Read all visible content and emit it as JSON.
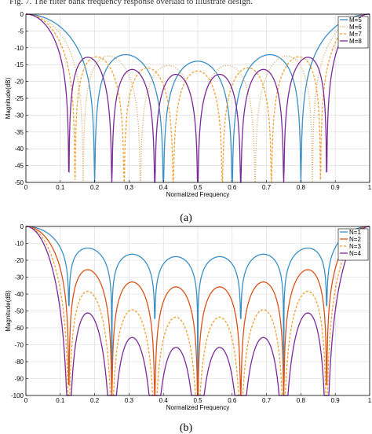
{
  "header_text": "Fig. 7. The filter bank frequency response overlaid to illustrate design.",
  "chart_data": [
    {
      "type": "line",
      "caption": "(a)",
      "xlabel": "Normalized Frequency",
      "ylabel": "Magnitude(dB)",
      "xlim": [
        0,
        1
      ],
      "ylim": [
        -50,
        0
      ],
      "xticks": [
        0,
        0.1,
        0.2,
        0.3,
        0.4,
        0.5,
        0.6,
        0.7,
        0.8,
        0.9,
        1
      ],
      "xtick_labels": [
        "0",
        "0.1",
        "0.2",
        "0.3",
        "0.4",
        "0.5",
        "0.6",
        "0.7",
        "0.8",
        "0.9",
        "1"
      ],
      "yticks": [
        0,
        -5,
        -10,
        -15,
        -20,
        -25,
        -30,
        -35,
        -40,
        -45,
        -50
      ],
      "ytick_labels": [
        "0",
        "-5",
        "-10",
        "-15",
        "-20",
        "-25",
        "-30",
        "-35",
        "-40",
        "-45",
        "-50"
      ],
      "grid": true,
      "legend_position": "top-right",
      "series": [
        {
          "name": "M=5",
          "color": "#3a8fc4",
          "style": "solid",
          "m": 5,
          "n": 1,
          "floor": -50,
          "x": [
            0,
            0.1,
            0.2,
            0.3,
            0.4,
            0.5,
            0.6,
            0.7,
            0.8,
            0.9,
            1.0
          ],
          "values": [
            0,
            -1.4,
            -6.1,
            -16.2,
            -50,
            -13.6,
            -12.0,
            -16.1,
            -50,
            -17.3,
            -11.9
          ]
        },
        {
          "name": "M=6",
          "color": "#d9a35a",
          "style": "dotted",
          "m": 6,
          "n": 1,
          "floor": -50,
          "x": [
            0,
            0.1,
            0.2,
            0.3,
            0.33,
            0.5,
            0.67,
            0.8,
            0.9,
            1.0
          ],
          "values": [
            0,
            -2.0,
            -9.3,
            -32.9,
            -48,
            -13.3,
            -48,
            -14.2,
            -15.0,
            -12.2
          ]
        },
        {
          "name": "M=7",
          "color": "#f0a030",
          "style": "dashed",
          "m": 7,
          "n": 1,
          "floor": -50,
          "x": [
            0,
            0.1,
            0.2,
            0.286,
            0.4,
            0.571,
            0.7,
            0.857,
            1.0
          ],
          "values": [
            0,
            -2.8,
            -14.1,
            -50,
            -12.6,
            -50,
            -12.3,
            -50,
            -12.2
          ]
        },
        {
          "name": "M=8",
          "color": "#7b2a9a",
          "style": "solid",
          "m": 8,
          "n": 1,
          "floor": -50,
          "x": [
            0,
            0.1,
            0.2,
            0.25,
            0.35,
            0.5,
            0.63,
            0.75,
            0.87,
            1.0
          ],
          "values": [
            0,
            -3.7,
            -21.1,
            -41.9,
            -12.4,
            -47.2,
            -12.0,
            -47.2,
            -12.1,
            -12.2
          ]
        }
      ]
    },
    {
      "type": "line",
      "caption": "(b)",
      "xlabel": "Normalized Frequency",
      "ylabel": "Magnitude(dB)",
      "xlim": [
        0,
        1
      ],
      "ylim": [
        -100,
        0
      ],
      "xticks": [
        0,
        0.1,
        0.2,
        0.3,
        0.4,
        0.5,
        0.6,
        0.7,
        0.8,
        0.9,
        1
      ],
      "xtick_labels": [
        "0",
        "0.1",
        "0.2",
        "0.3",
        "0.4",
        "0.5",
        "0.6",
        "0.7",
        "0.8",
        "0.9",
        "1"
      ],
      "yticks": [
        0,
        -10,
        -20,
        -30,
        -40,
        -50,
        -60,
        -70,
        -80,
        -90,
        -100
      ],
      "ytick_labels": [
        "0",
        "-10",
        "-20",
        "-30",
        "-40",
        "-50",
        "-60",
        "-70",
        "-80",
        "-90",
        "-100"
      ],
      "grid": true,
      "legend_position": "top-right",
      "series": [
        {
          "name": "N=1",
          "color": "#3a8fc4",
          "style": "solid",
          "m": 8,
          "n": 1,
          "floor": -100,
          "x": [
            0,
            0.1,
            0.2,
            0.25,
            0.36,
            0.5,
            0.62,
            0.75,
            0.88,
            1.0
          ],
          "values": [
            0,
            -3.7,
            -21.1,
            -60,
            -12.9,
            -60,
            -16.2,
            -60,
            -17.3,
            -16.5
          ]
        },
        {
          "name": "N=2",
          "color": "#d95319",
          "style": "solid",
          "m": 8,
          "n": 2,
          "floor": -100,
          "x": [
            0,
            0.1,
            0.2,
            0.25,
            0.36,
            0.5,
            0.62,
            0.75,
            0.88,
            1.0
          ],
          "values": [
            0,
            -7.4,
            -42.2,
            -100,
            -25.8,
            -100,
            -32.4,
            -100,
            -34.6,
            -33.0
          ]
        },
        {
          "name": "N=3",
          "color": "#f0a030",
          "style": "dashed",
          "m": 8,
          "n": 3,
          "floor": -100,
          "x": [
            0,
            0.1,
            0.2,
            0.25,
            0.36,
            0.5,
            0.62,
            0.75,
            0.88,
            1.0
          ],
          "values": [
            0,
            -11.1,
            -63.3,
            -100,
            -38.7,
            -100,
            -48.6,
            -100,
            -51.9,
            -49.5
          ]
        },
        {
          "name": "N=4",
          "color": "#7b2a9a",
          "style": "solid",
          "m": 8,
          "n": 4,
          "floor": -100,
          "x": [
            0,
            0.1,
            0.2,
            0.25,
            0.36,
            0.5,
            0.62,
            0.75,
            0.88,
            1.0
          ],
          "values": [
            0,
            -14.8,
            -84.4,
            -100,
            -51.6,
            -100,
            -64.8,
            -100,
            -69.2,
            -66.0
          ]
        }
      ]
    }
  ]
}
